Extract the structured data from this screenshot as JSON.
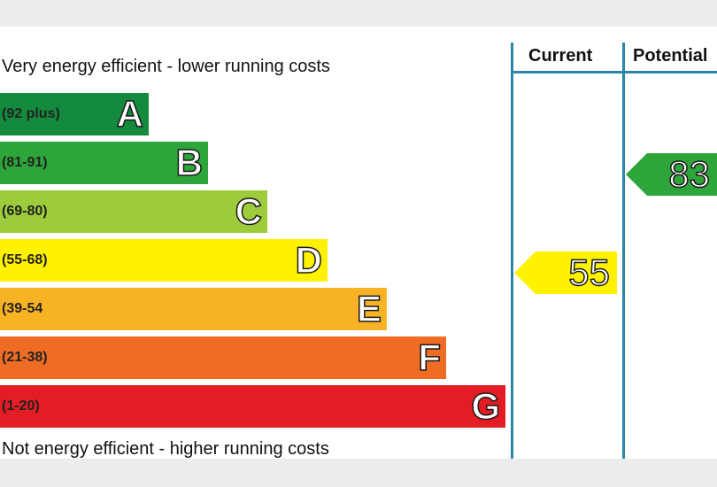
{
  "chart_data": {
    "type": "bar",
    "top_caption": "Very energy efficient - lower running costs",
    "bottom_caption": "Not energy efficient - higher running costs",
    "bands": [
      {
        "letter": "A",
        "range": "(92 plus)",
        "color": "#138a3c"
      },
      {
        "letter": "B",
        "range": "(81-91)",
        "color": "#2ea53a"
      },
      {
        "letter": "C",
        "range": "(69-80)",
        "color": "#9ccb3b"
      },
      {
        "letter": "D",
        "range": "(55-68)",
        "color": "#fff200"
      },
      {
        "letter": "E",
        "range": "(39-54",
        "color": "#f8b324"
      },
      {
        "letter": "F",
        "range": "(21-38)",
        "color": "#ef6c25"
      },
      {
        "letter": "G",
        "range": "(1-20)",
        "color": "#e31d23"
      }
    ],
    "columns": [
      "Current",
      "Potential"
    ],
    "current": {
      "value": 55,
      "band": "D",
      "color": "#fff200"
    },
    "potential": {
      "value": 83,
      "band": "B",
      "color": "#2ea53a"
    }
  }
}
